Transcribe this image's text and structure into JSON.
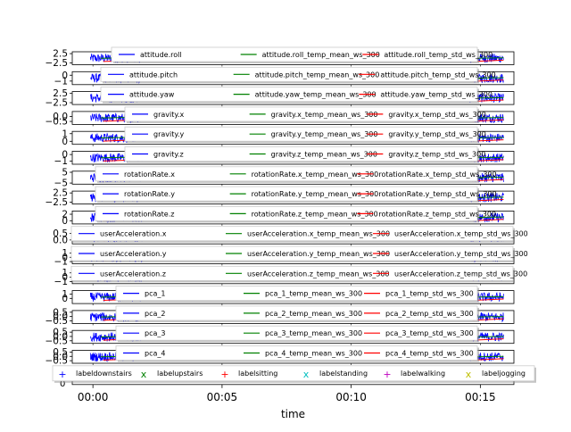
{
  "chart_data": {
    "type": "line",
    "xlabel": "time",
    "x_ticks": [
      "00:00",
      "00:05",
      "00:10",
      "00:15"
    ],
    "x_range_minutes": [
      -0.8,
      16.3
    ],
    "colors": {
      "raw": "#0000ff",
      "mean": "#008000",
      "std": "#ff0000",
      "downstairs": "#0000ff",
      "upstairs": "#008000",
      "sitting": "#ff0000",
      "standing": "#00bfbf",
      "walking": "#bf00bf",
      "jogging": "#bfbf00"
    },
    "panels": [
      {
        "id": "attitude-roll",
        "series": [
          "attitude.roll",
          "attitude.roll_temp_mean_ws_300",
          "attitude.roll_temp_std_ws_300"
        ],
        "ylim": [
          -3.5,
          3.5
        ],
        "ytick_labels": [
          "2.5",
          "−2.5"
        ],
        "ytick_values": [
          2.5,
          -2.5
        ],
        "legend_offset": 45
      },
      {
        "id": "attitude-pitch",
        "series": [
          "attitude.pitch",
          "attitude.pitch_temp_mean_ws_300",
          "attitude.pitch_temp_std_ws_300"
        ],
        "ylim": [
          -1.6,
          0.6
        ],
        "ytick_labels": [
          "0",
          "−1"
        ],
        "ytick_values": [
          0,
          -1
        ],
        "legend_offset": 33
      },
      {
        "id": "attitude-yaw",
        "series": [
          "attitude.yaw",
          "attitude.yaw_temp_mean_ws_300",
          "attitude.yaw_temp_std_ws_300"
        ],
        "ylim": [
          -3.5,
          3.5
        ],
        "ytick_labels": [
          "2.5",
          "−2.5"
        ],
        "ytick_values": [
          2.5,
          -2.5
        ],
        "legend_offset": 33
      },
      {
        "id": "gravity-x",
        "series": [
          "gravity.x",
          "gravity.x_temp_mean_ws_300",
          "gravity.x_temp_std_ws_300"
        ],
        "ylim": [
          -0.8,
          0.5
        ],
        "ytick_labels": [
          "0.0",
          "−0.5"
        ],
        "ytick_values": [
          0.0,
          -0.5
        ],
        "legend_offset": 60
      },
      {
        "id": "gravity-y",
        "series": [
          "gravity.y",
          "gravity.y_temp_mean_ws_300",
          "gravity.y_temp_std_ws_300"
        ],
        "ylim": [
          -0.4,
          1.3
        ],
        "ytick_labels": [
          "1",
          "0"
        ],
        "ytick_values": [
          1,
          0
        ],
        "legend_offset": 60
      },
      {
        "id": "gravity-z",
        "series": [
          "gravity.z",
          "gravity.z_temp_mean_ws_300",
          "gravity.z_temp_std_ws_300"
        ],
        "ylim": [
          -1.5,
          0.5
        ],
        "ytick_labels": [
          "0",
          "−1"
        ],
        "ytick_values": [
          0,
          -1
        ],
        "legend_offset": 60
      },
      {
        "id": "rotationRate-x",
        "series": [
          "rotationRate.x",
          "rotationRate.x_temp_mean_ws_300",
          "rotationRate.x_temp_std_ws_300"
        ],
        "ylim": [
          -6,
          6
        ],
        "ytick_labels": [
          "5",
          "−5"
        ],
        "ytick_values": [
          5,
          -5
        ],
        "legend_offset": 27
      },
      {
        "id": "rotationRate-y",
        "series": [
          "rotationRate.y",
          "rotationRate.y_temp_mean_ws_300",
          "rotationRate.y_temp_std_ws_300"
        ],
        "ylim": [
          -3.5,
          3.5
        ],
        "ytick_labels": [
          "2.5",
          "−2.5"
        ],
        "ytick_values": [
          2.5,
          -2.5
        ],
        "legend_offset": 27
      },
      {
        "id": "rotationRate-z",
        "series": [
          "rotationRate.z",
          "rotationRate.z_temp_mean_ws_300",
          "rotationRate.z_temp_std_ws_300"
        ],
        "ylim": [
          -1,
          3
        ],
        "ytick_labels": [
          "2",
          "0"
        ],
        "ytick_values": [
          2,
          0
        ],
        "legend_offset": 27
      },
      {
        "id": "userAcceleration-x",
        "series": [
          "userAcceleration.x",
          "userAcceleration.x_temp_mean_ws_300",
          "userAcceleration.x_temp_std_ws_300"
        ],
        "ylim": [
          -0.3,
          0.7
        ],
        "ytick_labels": [
          "0.5",
          "0.0"
        ],
        "ytick_values": [
          0.5,
          0.0
        ],
        "legend_offset": 0
      },
      {
        "id": "userAcceleration-y",
        "series": [
          "userAcceleration.y",
          "userAcceleration.y_temp_mean_ws_300",
          "userAcceleration.y_temp_std_ws_300"
        ],
        "ylim": [
          -1.5,
          1.5
        ],
        "ytick_labels": [
          "1",
          "0",
          "−1"
        ],
        "ytick_values": [
          1,
          0,
          -1
        ],
        "legend_offset": 0
      },
      {
        "id": "userAcceleration-z",
        "series": [
          "userAcceleration.z",
          "userAcceleration.z_temp_mean_ws_300",
          "userAcceleration.z_temp_std_ws_300"
        ],
        "ylim": [
          -1.5,
          1.5
        ],
        "ytick_labels": [
          "1",
          "0",
          "−1"
        ],
        "ytick_values": [
          1,
          0,
          -1
        ],
        "legend_offset": 0
      },
      {
        "id": "pca-1",
        "series": [
          "pca_1",
          "pca_1_temp_mean_ws_300",
          "pca_1_temp_std_ws_300"
        ],
        "ylim": [
          -1.2,
          1.8
        ],
        "ytick_labels": [
          "1",
          "0"
        ],
        "ytick_values": [
          1,
          0
        ],
        "legend_offset": 50
      },
      {
        "id": "pca-2",
        "series": [
          "pca_2",
          "pca_2_temp_mean_ws_300",
          "pca_2_temp_std_ws_300"
        ],
        "ylim": [
          -0.8,
          0.7
        ],
        "ytick_labels": [
          "0.5",
          "0.0",
          "−0.5"
        ],
        "ytick_values": [
          0.5,
          0.0,
          -0.5
        ],
        "legend_offset": 50
      },
      {
        "id": "pca-3",
        "series": [
          "pca_3",
          "pca_3_temp_mean_ws_300",
          "pca_3_temp_std_ws_300"
        ],
        "ylim": [
          -0.8,
          0.7
        ],
        "ytick_labels": [
          "0.5",
          "0.0",
          "−0.5"
        ],
        "ytick_values": [
          0.5,
          0.0,
          -0.5
        ],
        "legend_offset": 50
      },
      {
        "id": "pca-4",
        "series": [
          "pca_4",
          "pca_4_temp_mean_ws_300",
          "pca_4_temp_std_ws_300"
        ],
        "ylim": [
          -0.8,
          0.7
        ],
        "ytick_labels": [
          "0.5",
          "0.0",
          "−0.5"
        ],
        "ytick_values": [
          0.5,
          0.0,
          -0.5
        ],
        "legend_offset": 50
      }
    ],
    "activity_legend": [
      {
        "label": "labeldownstairs",
        "marker": "+",
        "color_key": "downstairs"
      },
      {
        "label": "labelupstairs",
        "marker": "x",
        "color_key": "upstairs"
      },
      {
        "label": "labelsitting",
        "marker": "+",
        "color_key": "sitting"
      },
      {
        "label": "labelstanding",
        "marker": "x",
        "color_key": "standing"
      },
      {
        "label": "labelwalking",
        "marker": "+",
        "color_key": "walking"
      },
      {
        "label": "labeljogging",
        "marker": "x",
        "color_key": "jogging"
      }
    ],
    "activity_axis_zero": "0"
  }
}
